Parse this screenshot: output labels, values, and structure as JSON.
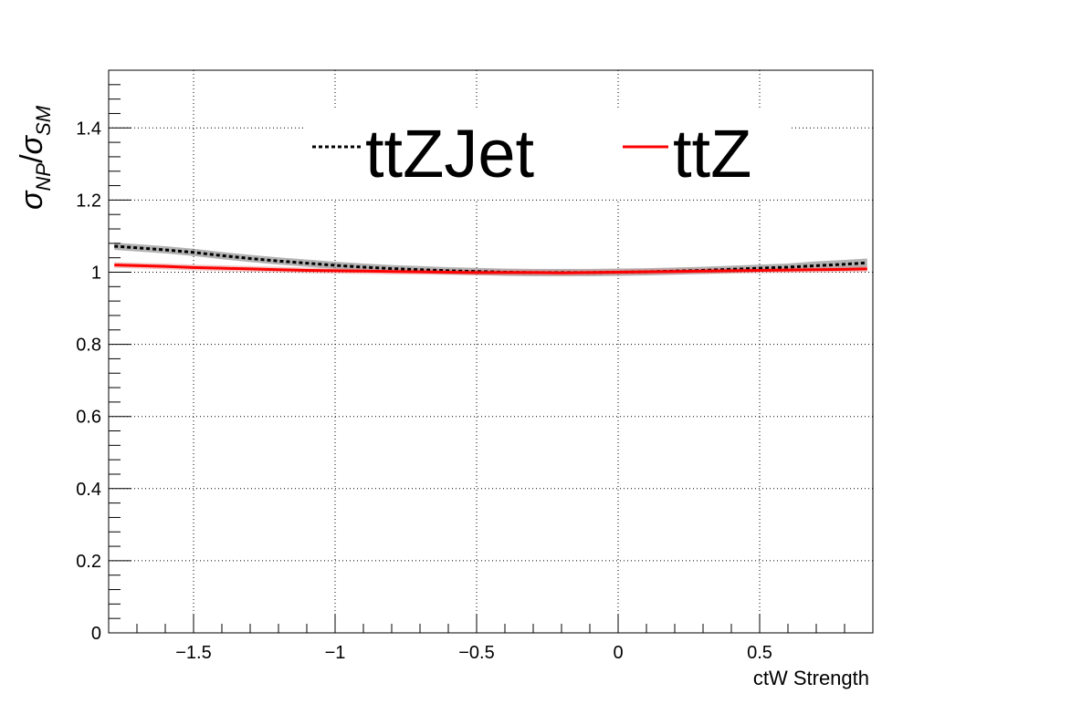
{
  "chart_data": {
    "type": "line",
    "xlabel": "ctW Strength",
    "ylabel": {
      "symbol": "σ",
      "num_sub": "NP",
      "slash": "/",
      "den_sub": "SM"
    },
    "xlim": [
      -1.8,
      0.9
    ],
    "ylim": [
      0,
      1.56
    ],
    "xticks": [
      -1.5,
      -1,
      -0.5,
      0,
      0.5
    ],
    "xtick_labels": [
      "−1.5",
      "−1",
      "−0.5",
      "0",
      "0.5"
    ],
    "yticks": [
      0,
      0.2,
      0.4,
      0.6,
      0.8,
      1,
      1.2,
      1.4
    ],
    "ytick_labels": [
      "0",
      "0.2",
      "0.4",
      "0.6",
      "0.8",
      "1",
      "1.2",
      "1.4"
    ],
    "grid": true,
    "legend_placement": "top",
    "series": [
      {
        "name": "ttZJet",
        "style": "dotted",
        "color": "#000000",
        "band_color": "#555555",
        "x": [
          -1.78,
          -1.6,
          -1.5,
          -1.4,
          -1.3,
          -1.2,
          -1.1,
          -1.0,
          -0.9,
          -0.8,
          -0.7,
          -0.6,
          -0.5,
          -0.4,
          -0.3,
          -0.2,
          -0.1,
          0.0,
          0.1,
          0.2,
          0.3,
          0.4,
          0.5,
          0.6,
          0.7,
          0.8,
          0.88
        ],
        "y": [
          1.072,
          1.062,
          1.055,
          1.046,
          1.038,
          1.031,
          1.025,
          1.019,
          1.014,
          1.01,
          1.007,
          1.004,
          1.002,
          1.0,
          0.999,
          0.999,
          0.999,
          1.0,
          1.001,
          1.003,
          1.005,
          1.008,
          1.011,
          1.014,
          1.018,
          1.022,
          1.026
        ],
        "band": [
          0.01,
          0.01,
          0.01,
          0.01,
          0.01,
          0.01,
          0.01,
          0.01,
          0.01,
          0.01,
          0.01,
          0.01,
          0.01,
          0.01,
          0.01,
          0.01,
          0.01,
          0.01,
          0.01,
          0.01,
          0.01,
          0.01,
          0.01,
          0.01,
          0.012,
          0.012,
          0.012
        ]
      },
      {
        "name": "ttZ",
        "style": "solid",
        "color": "#ff0000",
        "band_color": "#e08080",
        "x": [
          -1.78,
          -1.6,
          -1.5,
          -1.4,
          -1.3,
          -1.2,
          -1.1,
          -1.0,
          -0.9,
          -0.8,
          -0.7,
          -0.6,
          -0.5,
          -0.4,
          -0.3,
          -0.2,
          -0.1,
          0.0,
          0.1,
          0.2,
          0.3,
          0.4,
          0.5,
          0.6,
          0.7,
          0.8,
          0.88
        ],
        "y": [
          1.02,
          1.016,
          1.013,
          1.011,
          1.009,
          1.007,
          1.005,
          1.004,
          1.003,
          1.002,
          1.001,
          1.0,
          0.999,
          0.999,
          0.999,
          0.998,
          0.999,
          1.0,
          1.001,
          1.002,
          1.003,
          1.004,
          1.005,
          1.006,
          1.007,
          1.008,
          1.009
        ],
        "band": [
          0.008,
          0.008,
          0.008,
          0.008,
          0.008,
          0.008,
          0.008,
          0.008,
          0.008,
          0.008,
          0.008,
          0.008,
          0.008,
          0.008,
          0.008,
          0.008,
          0.008,
          0.008,
          0.008,
          0.008,
          0.008,
          0.008,
          0.008,
          0.008,
          0.008,
          0.008,
          0.008
        ]
      }
    ]
  }
}
